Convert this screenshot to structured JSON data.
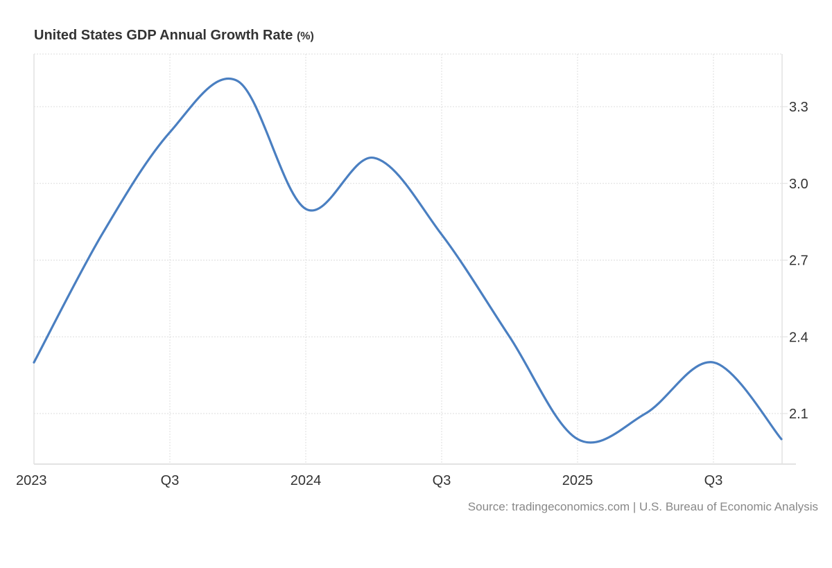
{
  "chart_data": {
    "type": "line",
    "title": "United States GDP Annual Growth Rate",
    "title_unit": "(%)",
    "xlabel": "",
    "ylabel": "",
    "x": [
      "2023 Q1",
      "2023 Q2",
      "2023 Q3",
      "2023 Q4",
      "2024 Q1",
      "2024 Q2",
      "2024 Q3",
      "2024 Q4",
      "2025 Q1",
      "2025 Q2",
      "2025 Q3",
      "2025 Q4"
    ],
    "series": [
      {
        "name": "GDP Annual Growth Rate",
        "color": "#4a7fc1",
        "values": [
          2.3,
          2.8,
          3.2,
          3.4,
          2.9,
          3.1,
          2.8,
          2.4,
          2.0,
          2.1,
          2.3,
          2.0
        ]
      }
    ],
    "x_tick_labels": [
      {
        "index": 0,
        "label": "2023"
      },
      {
        "index": 2,
        "label": "Q3"
      },
      {
        "index": 4,
        "label": "2024"
      },
      {
        "index": 6,
        "label": "Q3"
      },
      {
        "index": 8,
        "label": "2025"
      },
      {
        "index": 10,
        "label": "Q3"
      }
    ],
    "y_ticks": [
      2.1,
      2.4,
      2.7,
      3.0,
      3.3
    ],
    "y_tick_labels": [
      "2.1",
      "2.4",
      "2.7",
      "3.0",
      "3.3"
    ],
    "ylim": [
      1.8,
      3.5
    ],
    "y_axis_side": "right",
    "grid": true,
    "legend": "none",
    "source": "Source: tradingeconomics.com | U.S. Bureau of Economic Analysis"
  }
}
